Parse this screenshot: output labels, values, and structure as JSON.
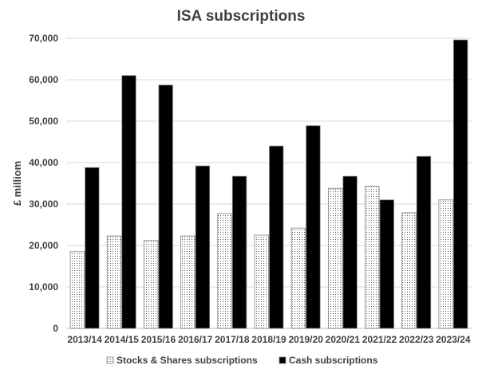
{
  "chart_data": {
    "type": "bar",
    "title": "ISA subscriptions",
    "xlabel": "",
    "ylabel": "£ milliom",
    "ylim": [
      0,
      70000
    ],
    "yticks": [
      0,
      10000,
      20000,
      30000,
      40000,
      50000,
      60000,
      70000
    ],
    "ytick_labels": [
      "0",
      "10,000",
      "20,000",
      "30,000",
      "40,000",
      "50,000",
      "60,000",
      "70,000"
    ],
    "grid": true,
    "legend_position": "bottom",
    "categories": [
      "2013/14",
      "2014/15",
      "2015/16",
      "2016/17",
      "2017/18",
      "2018/19",
      "2019/20",
      "2020/21",
      "2021/22",
      "2022/23",
      "2023/24"
    ],
    "series": [
      {
        "name": "Stocks & Shares subscriptions",
        "fill": "dotted",
        "color": "#ffffff",
        "values": [
          18500,
          22300,
          21200,
          22300,
          27700,
          22500,
          24200,
          33800,
          34300,
          27900,
          31000
        ]
      },
      {
        "name": "Cash subscriptions",
        "fill": "solid",
        "color": "#000000",
        "values": [
          38800,
          61000,
          58700,
          39200,
          36700,
          44000,
          48900,
          36700,
          31000,
          41500,
          69600
        ]
      }
    ]
  }
}
